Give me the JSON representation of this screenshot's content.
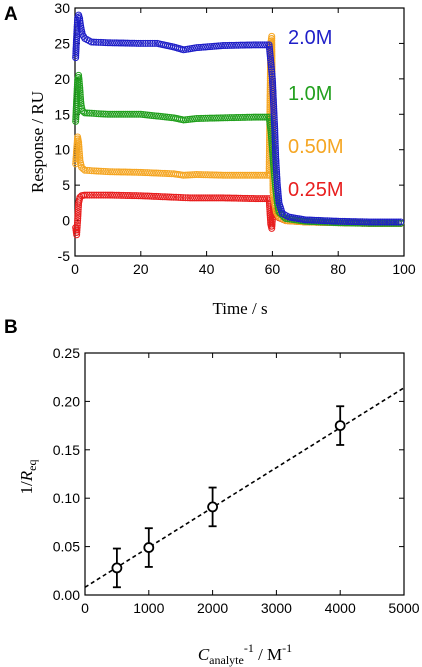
{
  "chart_data": [
    {
      "panel": "A",
      "type": "scatter",
      "xlabel": "Time / s",
      "ylabel": "Response / RU",
      "xlim": [
        0,
        100
      ],
      "ylim": [
        -5,
        30
      ],
      "xticks": [
        0,
        20,
        40,
        60,
        80,
        100
      ],
      "yticks": [
        -5,
        0,
        5,
        10,
        15,
        20,
        25,
        30
      ],
      "legend": "right",
      "series": [
        {
          "name": "2.0M",
          "color": "#1f1fc8",
          "points": [
            [
              0.2,
              23
            ],
            [
              0.5,
              26
            ],
            [
              0.8,
              28.6
            ],
            [
              1.1,
              29
            ],
            [
              1.4,
              28.5
            ],
            [
              1.7,
              27.5
            ],
            [
              2.2,
              26.3
            ],
            [
              3,
              25.7
            ],
            [
              5,
              25.2
            ],
            [
              10,
              25.1
            ],
            [
              20,
              25
            ],
            [
              25,
              25
            ],
            [
              30,
              24.5
            ],
            [
              33,
              24.1
            ],
            [
              37,
              24.4
            ],
            [
              45,
              24.7
            ],
            [
              55,
              24.8
            ],
            [
              59,
              24.8
            ],
            [
              59.6,
              22
            ],
            [
              60,
              20
            ],
            [
              60.3,
              17
            ],
            [
              60.7,
              13
            ],
            [
              61,
              9
            ],
            [
              61.5,
              5
            ],
            [
              62,
              2.5
            ],
            [
              63,
              1
            ],
            [
              65,
              0.5
            ],
            [
              70,
              0.1
            ],
            [
              80,
              -0.1
            ],
            [
              90,
              -0.2
            ],
            [
              99,
              -0.2
            ]
          ]
        },
        {
          "name": "1.0M",
          "color": "#22a01e",
          "points": [
            [
              0.2,
              14
            ],
            [
              0.5,
              17
            ],
            [
              0.8,
              19.8
            ],
            [
              1.1,
              20.5
            ],
            [
              1.4,
              19
            ],
            [
              1.8,
              16.5
            ],
            [
              2.2,
              15.5
            ],
            [
              3,
              15.2
            ],
            [
              10,
              15
            ],
            [
              20,
              15
            ],
            [
              30,
              14.5
            ],
            [
              33,
              14.2
            ],
            [
              37,
              14.4
            ],
            [
              45,
              14.5
            ],
            [
              55,
              14.6
            ],
            [
              59,
              14.6
            ],
            [
              59.6,
              12.5
            ],
            [
              60,
              10
            ],
            [
              60.5,
              7
            ],
            [
              61,
              4.5
            ],
            [
              61.5,
              2.5
            ],
            [
              62,
              1.2
            ],
            [
              64,
              0.3
            ],
            [
              70,
              -0.1
            ],
            [
              80,
              -0.3
            ],
            [
              90,
              -0.4
            ],
            [
              99,
              -0.4
            ]
          ]
        },
        {
          "name": "0.50M",
          "color": "#f5a623",
          "points": [
            [
              0.2,
              8
            ],
            [
              0.5,
              10
            ],
            [
              0.8,
              11.8
            ],
            [
              1.1,
              11
            ],
            [
              1.5,
              8.5
            ],
            [
              2,
              7.5
            ],
            [
              3,
              7.1
            ],
            [
              10,
              6.9
            ],
            [
              20,
              6.8
            ],
            [
              30,
              6.6
            ],
            [
              33,
              6.4
            ],
            [
              37,
              6.5
            ],
            [
              45,
              6.4
            ],
            [
              55,
              6.4
            ],
            [
              59,
              6.4
            ],
            [
              59.5,
              25
            ],
            [
              59.8,
              26
            ],
            [
              60.2,
              4
            ],
            [
              60.7,
              2.5
            ],
            [
              61.2,
              1.2
            ],
            [
              62,
              0.5
            ],
            [
              64,
              0
            ],
            [
              70,
              -0.2
            ],
            [
              80,
              -0.3
            ],
            [
              90,
              -0.4
            ],
            [
              99,
              -0.4
            ]
          ]
        },
        {
          "name": "0.25M",
          "color": "#e81e1e",
          "points": [
            [
              0.2,
              -1
            ],
            [
              0.5,
              -2
            ],
            [
              0.8,
              0
            ],
            [
              1.1,
              2.5
            ],
            [
              1.5,
              3.3
            ],
            [
              2,
              3.5
            ],
            [
              3,
              3.6
            ],
            [
              10,
              3.6
            ],
            [
              20,
              3.5
            ],
            [
              30,
              3.3
            ],
            [
              35,
              3.2
            ],
            [
              45,
              3.2
            ],
            [
              55,
              3.1
            ],
            [
              59,
              3.1
            ],
            [
              59.5,
              -0.5
            ],
            [
              59.8,
              -1.1
            ],
            [
              60.3,
              2
            ],
            [
              61,
              1
            ],
            [
              62,
              0.4
            ],
            [
              64,
              0
            ],
            [
              70,
              -0.2
            ],
            [
              80,
              -0.3
            ],
            [
              90,
              -0.4
            ],
            [
              99,
              -0.4
            ]
          ]
        }
      ]
    },
    {
      "panel": "B",
      "type": "scatter",
      "xlabel_main": "C",
      "xlabel_sub": "analyte",
      "xlabel_sup": "-1",
      "xlabel_tail": " / M",
      "xlabel_tail_sup": "-1",
      "ylabel_main": "1/",
      "ylabel_italic": "R",
      "ylabel_sub": "eq",
      "xlim": [
        0,
        5000
      ],
      "ylim": [
        0,
        0.25
      ],
      "xticks": [
        0,
        1000,
        2000,
        3000,
        4000,
        5000
      ],
      "yticks": [
        0.0,
        0.05,
        0.1,
        0.15,
        0.2,
        0.25
      ],
      "ytick_labels": [
        "0.00",
        "0.05",
        "0.10",
        "0.15",
        "0.20",
        "0.25"
      ],
      "points": [
        {
          "x": 500,
          "y": 0.028,
          "err": 0.02
        },
        {
          "x": 1000,
          "y": 0.049,
          "err": 0.02
        },
        {
          "x": 2000,
          "y": 0.091,
          "err": 0.02
        },
        {
          "x": 4000,
          "y": 0.175,
          "err": 0.02
        }
      ],
      "fit_line": {
        "x": [
          0,
          5000
        ],
        "y": [
          0.008,
          0.214
        ],
        "style": "dashed"
      }
    }
  ]
}
